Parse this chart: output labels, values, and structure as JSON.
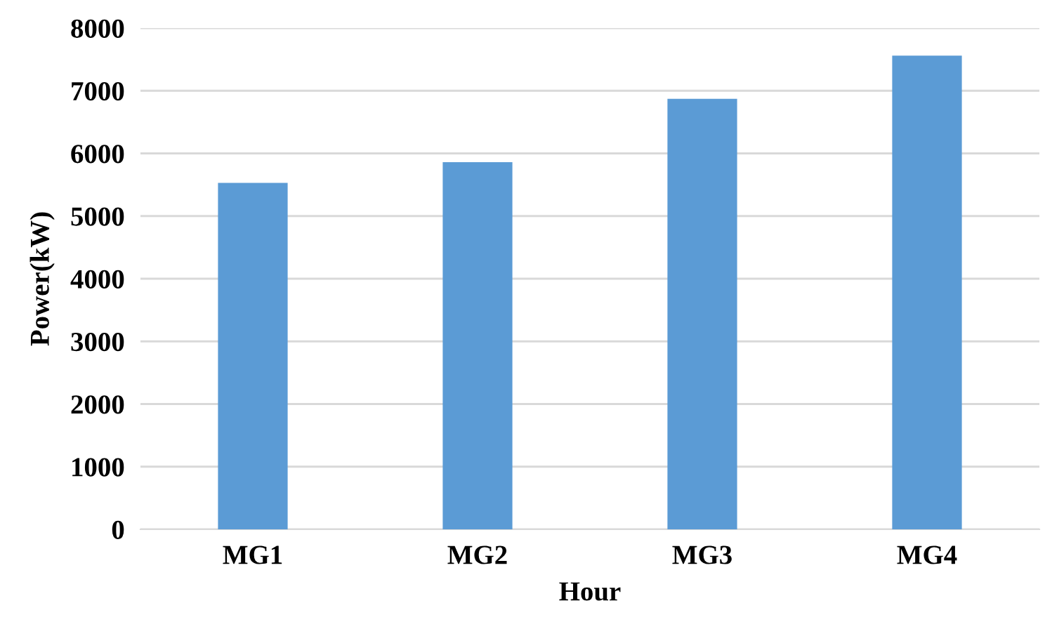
{
  "chart_data": {
    "type": "bar",
    "xlabel": "Hour",
    "ylabel": "Power(kW)",
    "categories": [
      "MG1",
      "MG2",
      "MG3",
      "MG4"
    ],
    "values": [
      5530,
      5860,
      6870,
      7560
    ],
    "color": "#5b9bd5",
    "ylim": [
      0,
      8000
    ],
    "yticks": [
      0,
      1000,
      2000,
      3000,
      4000,
      5000,
      6000,
      7000,
      8000
    ],
    "grid": "y"
  }
}
